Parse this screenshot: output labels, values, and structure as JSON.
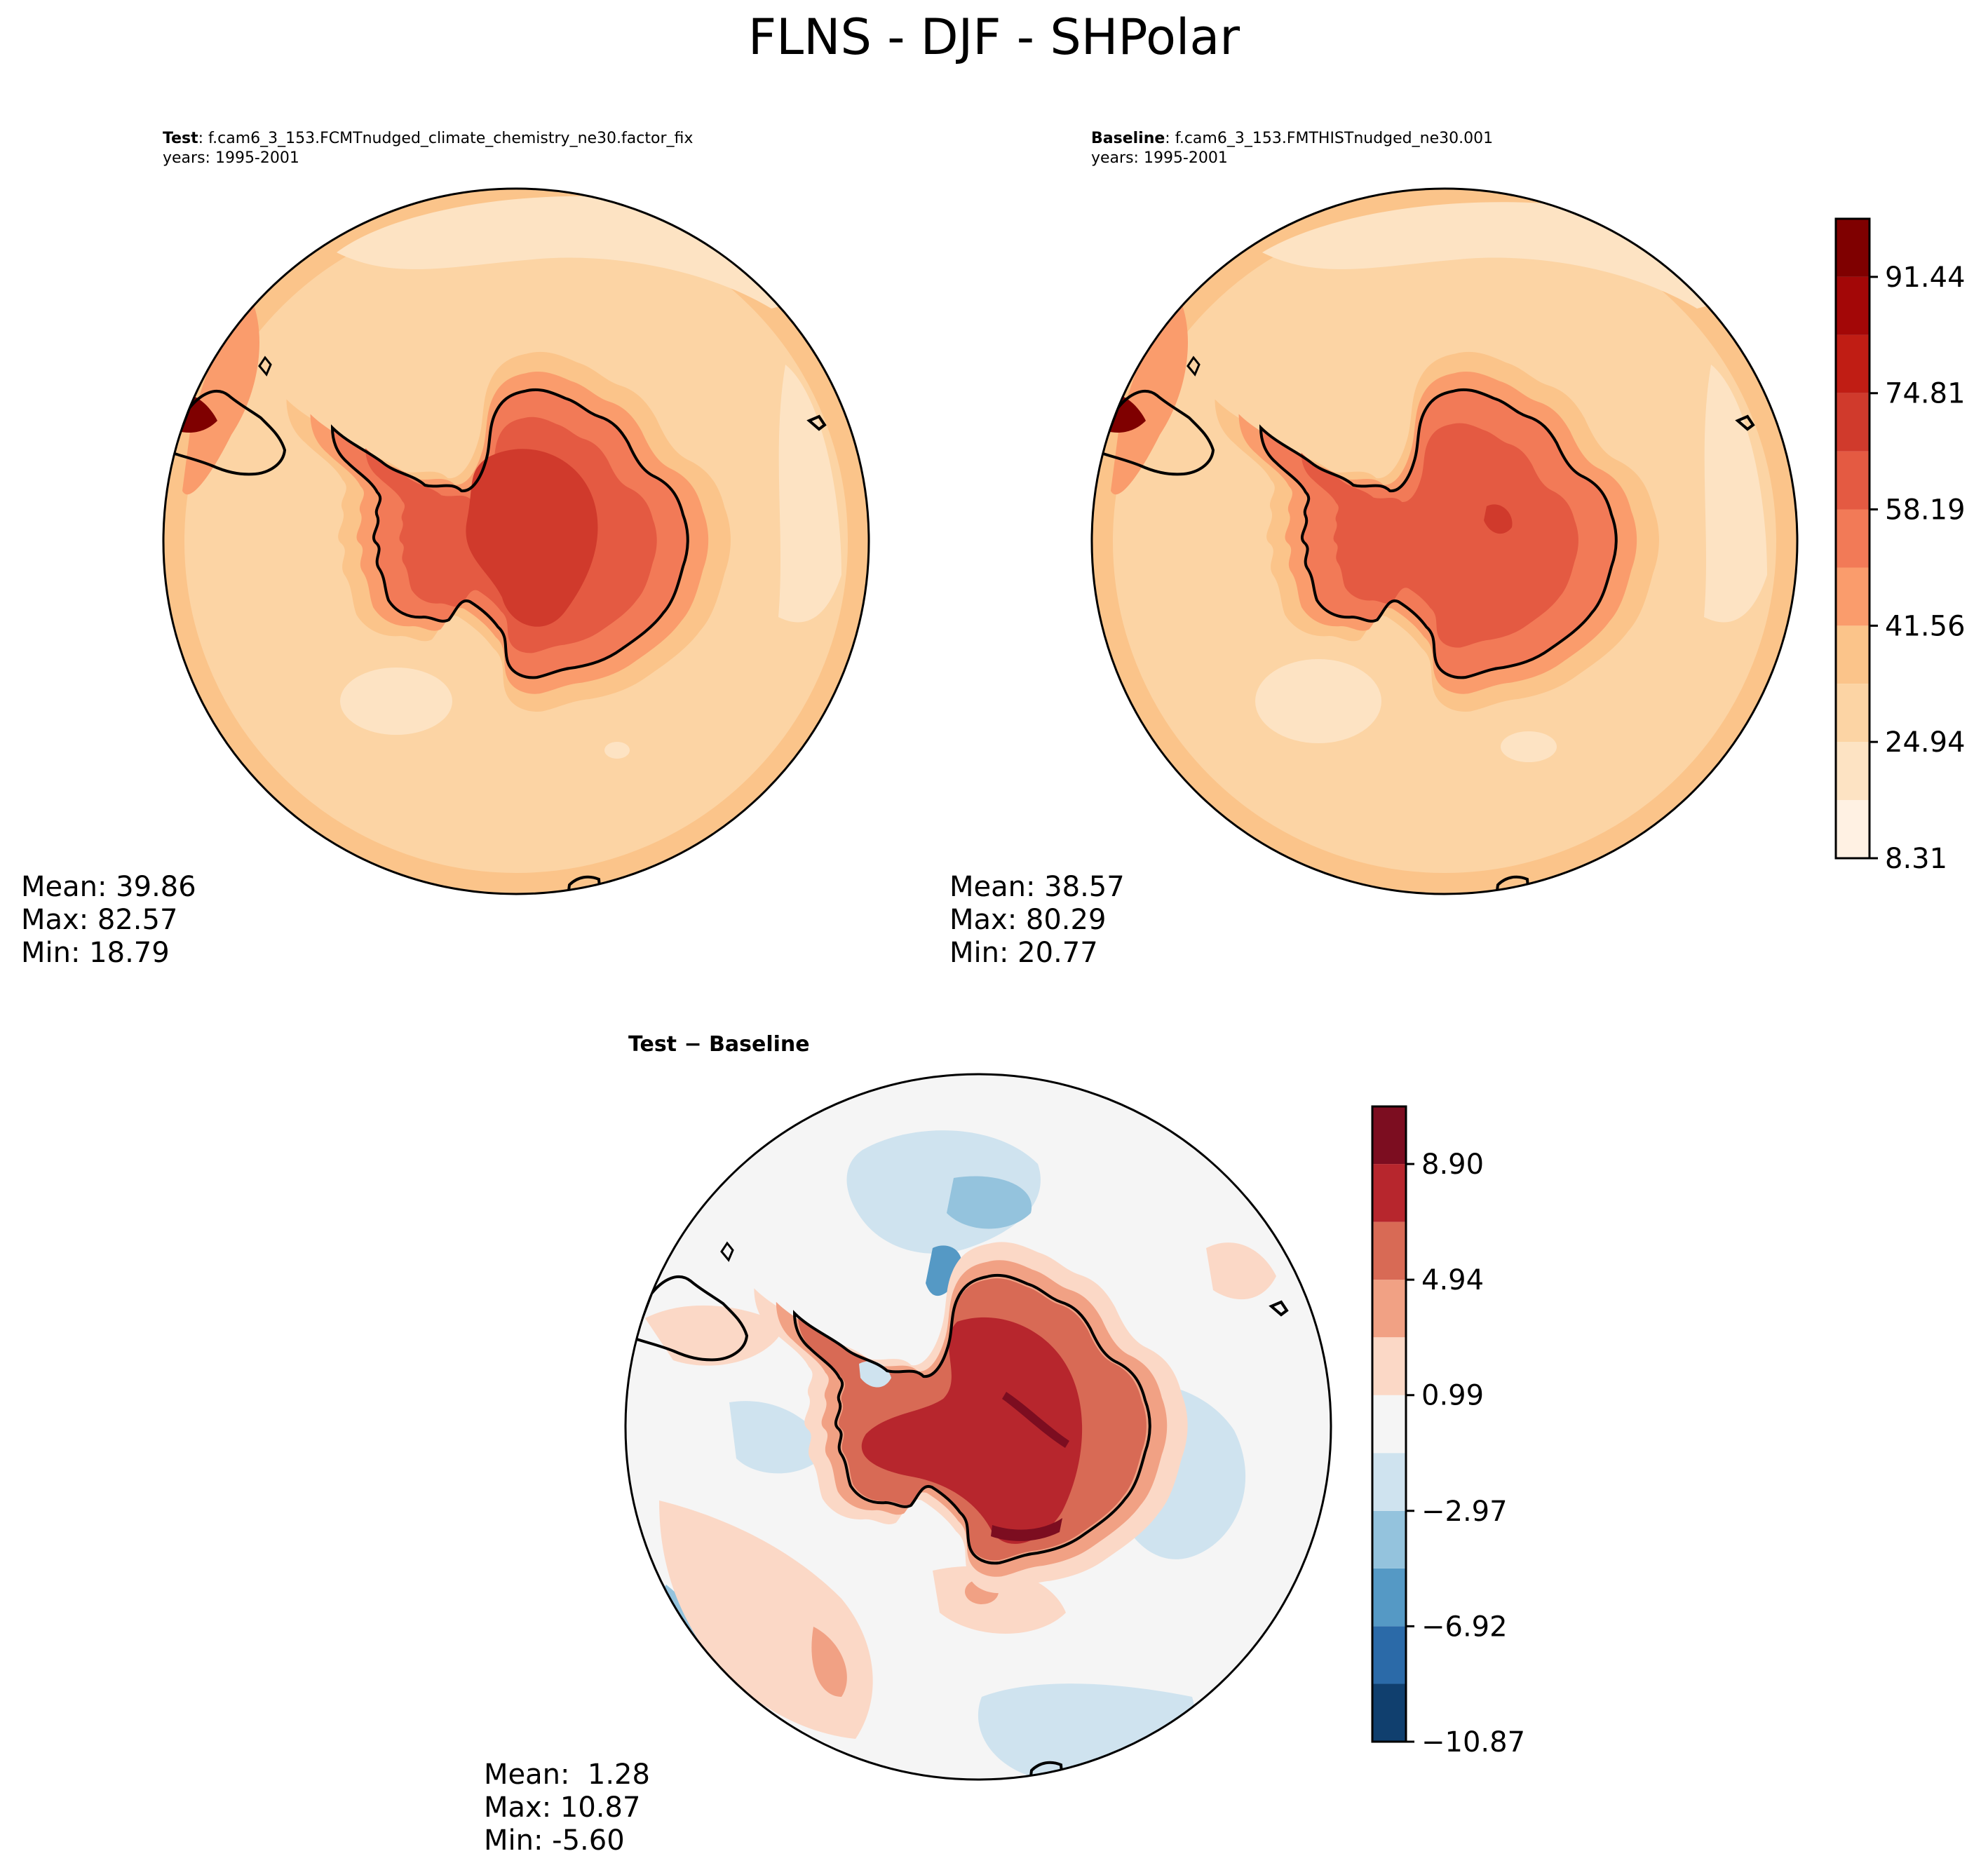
{
  "figure": {
    "title": "FLNS - DJF - SHPolar"
  },
  "panels": {
    "test": {
      "label": "Test",
      "case": ": f.cam6_3_153.FCMTnudged_climate_chemistry_ne30.factor_fix",
      "years": "years: 1995-2001",
      "mean": "Mean: 39.86",
      "max": "Max: 82.57",
      "min": "Min: 18.79"
    },
    "baseline": {
      "label": "Baseline",
      "case": ": f.cam6_3_153.FMTHISTnudged_ne30.001",
      "years": "years: 1995-2001",
      "mean": "Mean: 38.57",
      "max": "Max: 80.29",
      "min": "Min: 20.77"
    },
    "diff": {
      "title": "Test − Baseline",
      "mean": "Mean:  1.28",
      "max": "Max: 10.87",
      "min": "Min: -5.60"
    }
  },
  "chart_data": [
    {
      "type": "heatmap",
      "projection": "south-polar-stereographic",
      "panel": "Test",
      "variable": "FLNS",
      "season": "DJF",
      "region": "SHPolar",
      "colormap": "sequential orange-red",
      "colorbar": {
        "levels": [
          8.31,
          16.62,
          24.94,
          33.25,
          41.56,
          49.87,
          58.19,
          66.5,
          74.81,
          83.12,
          91.44,
          99.75
        ],
        "tick_labels": [
          "8.31",
          "24.94",
          "41.56",
          "58.19",
          "74.81",
          "91.44"
        ]
      },
      "stats": {
        "mean": 39.86,
        "max": 82.57,
        "min": 18.79
      }
    },
    {
      "type": "heatmap",
      "projection": "south-polar-stereographic",
      "panel": "Baseline",
      "variable": "FLNS",
      "season": "DJF",
      "region": "SHPolar",
      "colorbar": "shared with Test",
      "stats": {
        "mean": 38.57,
        "max": 80.29,
        "min": 20.77
      }
    },
    {
      "type": "heatmap",
      "projection": "south-polar-stereographic",
      "panel": "Test − Baseline",
      "colormap": "diverging blue-red",
      "colorbar": {
        "levels": [
          -10.87,
          -8.89,
          -6.92,
          -4.94,
          -2.97,
          -0.99,
          0.99,
          2.97,
          4.94,
          6.92,
          8.9,
          10.87
        ],
        "tick_labels": [
          "−10.87",
          "−6.92",
          "−2.97",
          "0.99",
          "4.94",
          "8.90"
        ]
      },
      "stats": {
        "mean": 1.28,
        "max": 10.87,
        "min": -5.6
      }
    }
  ],
  "colors": {
    "seq": [
      "#fff1e3",
      "#fde3c3",
      "#fcd4a4",
      "#fbc48a",
      "#fa9c6c",
      "#f27a57",
      "#e45a42",
      "#d03a2c",
      "#c01d14",
      "#a30707",
      "#7f0000"
    ],
    "div": [
      "#103f6e",
      "#2b6aa8",
      "#5599c5",
      "#94c3dd",
      "#cfe3ef",
      "#f5f5f5",
      "#fbd8c6",
      "#f1a184",
      "#d86a55",
      "#b7262d",
      "#7c0d20"
    ]
  }
}
